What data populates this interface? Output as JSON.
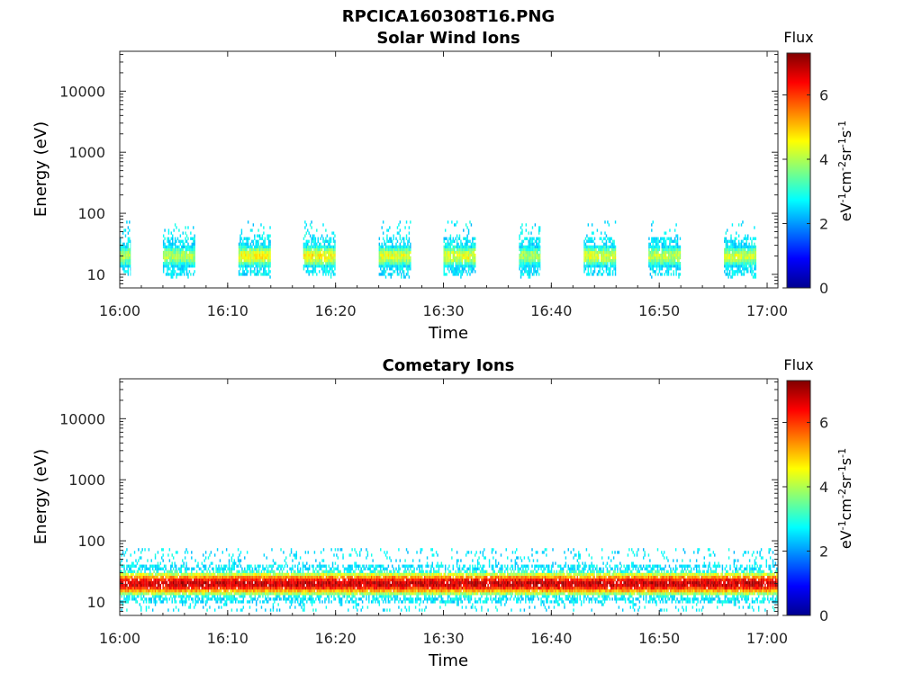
{
  "figure_title": "RPCICA160308T16.PNG",
  "colors": {
    "axis": "#262626",
    "colormap": "jet"
  },
  "chart_data": [
    {
      "type": "heatmap",
      "title": "Solar Wind Ions",
      "xlabel": "Time",
      "ylabel": "Energy (eV)",
      "y_scale": "log",
      "ylim": [
        6,
        45000
      ],
      "xlim": [
        "16:00",
        "17:01"
      ],
      "x_ticks": [
        "16:00",
        "16:10",
        "16:20",
        "16:30",
        "16:40",
        "16:50",
        "17:00"
      ],
      "y_ticks": [
        "10",
        "100",
        "1000",
        "10000"
      ],
      "colorbar": {
        "label": "Flux",
        "unit": "eV-1cm-2sr-1s-1",
        "range": [
          0,
          7.3
        ],
        "ticks": [
          "0",
          "2",
          "4",
          "6"
        ]
      },
      "bursts": [
        {
          "start": "16:00",
          "end": "16:01",
          "energy_range_eV": [
            8,
            80
          ],
          "peak_energy_eV": 20,
          "peak_flux": 4.0
        },
        {
          "start": "16:04",
          "end": "16:07",
          "energy_range_eV": [
            8,
            80
          ],
          "peak_energy_eV": 20,
          "peak_flux": 4.0
        },
        {
          "start": "16:11",
          "end": "16:14",
          "energy_range_eV": [
            8,
            80
          ],
          "peak_energy_eV": 20,
          "peak_flux": 4.5
        },
        {
          "start": "16:17",
          "end": "16:20",
          "energy_range_eV": [
            8,
            80
          ],
          "peak_energy_eV": 20,
          "peak_flux": 4.6
        },
        {
          "start": "16:24",
          "end": "16:27",
          "energy_range_eV": [
            8,
            80
          ],
          "peak_energy_eV": 20,
          "peak_flux": 4.3
        },
        {
          "start": "16:30",
          "end": "16:33",
          "energy_range_eV": [
            8,
            80
          ],
          "peak_energy_eV": 20,
          "peak_flux": 4.4
        },
        {
          "start": "16:37",
          "end": "16:39",
          "energy_range_eV": [
            8,
            80
          ],
          "peak_energy_eV": 20,
          "peak_flux": 4.0
        },
        {
          "start": "16:43",
          "end": "16:46",
          "energy_range_eV": [
            8,
            80
          ],
          "peak_energy_eV": 20,
          "peak_flux": 4.3
        },
        {
          "start": "16:49",
          "end": "16:52",
          "energy_range_eV": [
            8,
            80
          ],
          "peak_energy_eV": 20,
          "peak_flux": 4.1
        },
        {
          "start": "16:56",
          "end": "16:59",
          "energy_range_eV": [
            8,
            80
          ],
          "peak_energy_eV": 20,
          "peak_flux": 4.2
        }
      ]
    },
    {
      "type": "heatmap",
      "title": "Cometary Ions",
      "xlabel": "Time",
      "ylabel": "Energy (eV)",
      "y_scale": "log",
      "ylim": [
        6,
        45000
      ],
      "xlim": [
        "16:00",
        "17:01"
      ],
      "x_ticks": [
        "16:00",
        "16:10",
        "16:20",
        "16:30",
        "16:40",
        "16:50",
        "17:00"
      ],
      "y_ticks": [
        "10",
        "100",
        "1000",
        "10000"
      ],
      "colorbar": {
        "label": "Flux",
        "unit": "eV-1cm-2sr-1s-1",
        "range": [
          0,
          7.3
        ],
        "ticks": [
          "0",
          "2",
          "4",
          "6"
        ]
      },
      "bursts": [
        {
          "start": "16:00",
          "end": "17:01",
          "energy_range_eV": [
            7,
            80
          ],
          "peak_energy_eV": 20,
          "peak_flux": 6.8
        }
      ]
    }
  ]
}
